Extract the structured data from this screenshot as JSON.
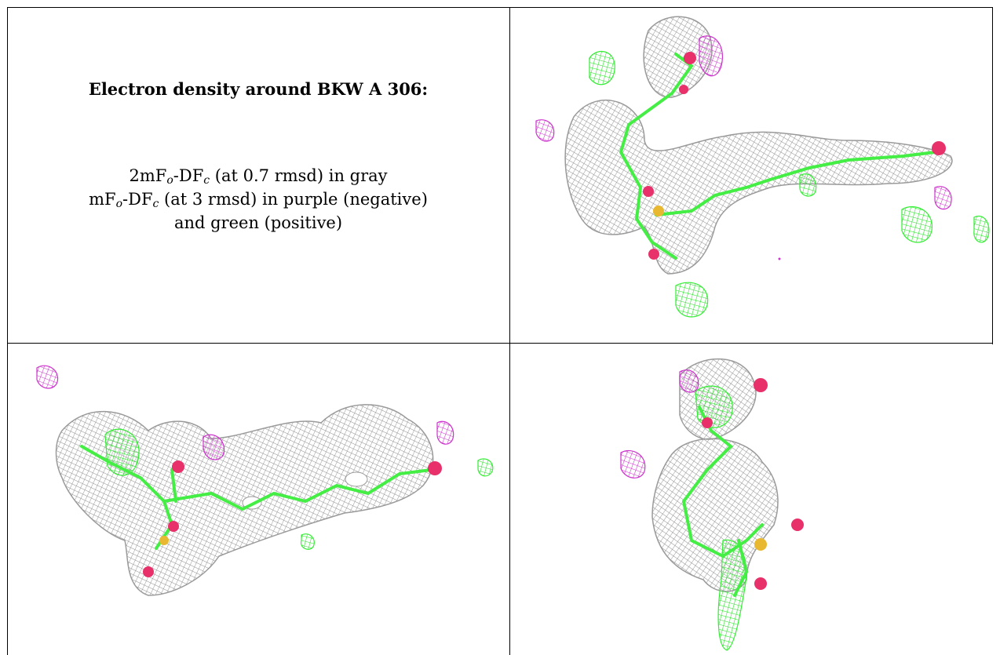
{
  "caption": {
    "title": "Electron density around BKW A 306:",
    "line1_pre": "2mF",
    "line1_sub1": "o",
    "line1_mid": "-DF",
    "line1_sub2": "c",
    "line1_post": " (at 0.7 rmsd) in gray",
    "line2_pre": "mF",
    "line2_sub1": "o",
    "line2_mid": "-DF",
    "line2_sub2": "c",
    "line2_post": " (at 3 rmsd) in purple (negative)",
    "line3": "and green (positive)"
  },
  "colors": {
    "density_2fofc": "#9a9a9a",
    "difference_negative": "#cc33cc",
    "difference_positive": "#33ee33",
    "oxygen": "#e8306a",
    "sulfur": "#e8b830",
    "carbon_bonds": "#44ee44"
  },
  "panels": [
    {
      "view": "top-right"
    },
    {
      "view": "bottom-left"
    },
    {
      "view": "bottom-right"
    }
  ]
}
